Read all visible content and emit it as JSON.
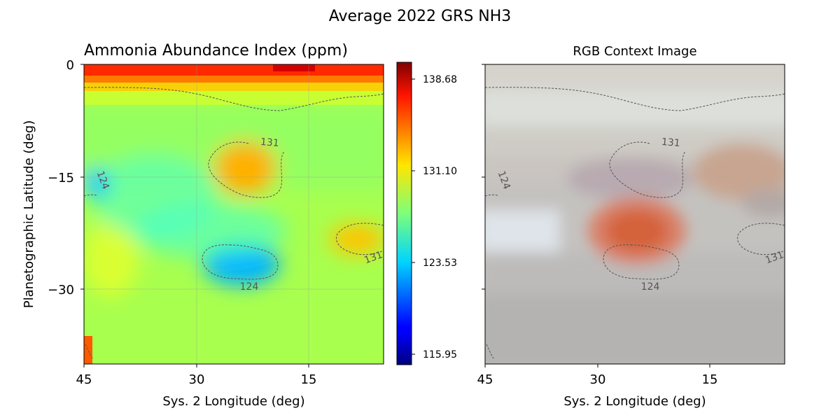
{
  "figure": {
    "suptitle": "Average 2022 GRS NH3"
  },
  "chart_data": [
    {
      "type": "heatmap",
      "title": "Ammonia Abundance Index (ppm)",
      "xlabel": "Sys. 2 Longitude (deg)",
      "ylabel": "Planetographic Latitude (deg)",
      "xlim": [
        45,
        5
      ],
      "ylim": [
        -40,
        0
      ],
      "xticks": [
        "45",
        "30",
        "15"
      ],
      "yticks": [
        "0",
        "−15",
        "−30"
      ],
      "grid": true,
      "colormap": "jet",
      "colorbar": {
        "range": [
          115.2,
          139.3
        ],
        "ticks": [
          "138.68",
          "131.10",
          "123.53",
          "115.95"
        ]
      },
      "background_value": 128.5,
      "features": [
        {
          "kind": "high_band_top",
          "lat": 0,
          "value": 138.7
        },
        {
          "kind": "ammonia_high",
          "lon": 22,
          "lat": -14,
          "value": 133.5
        },
        {
          "kind": "ammonia_high",
          "lon": 7,
          "lat": -23,
          "value": 132.5
        },
        {
          "kind": "ammonia_low",
          "lon": 22,
          "lat": -26,
          "value": 122.0
        },
        {
          "kind": "ammonia_low",
          "lon": 44,
          "lat": -16,
          "value": 124.5
        }
      ],
      "contour_labels": [
        "131",
        "124",
        "124",
        "131"
      ]
    },
    {
      "type": "heatmap",
      "title": "RGB Context Image",
      "xlabel": "Sys. 2 Longitude (deg)",
      "xlim": [
        45,
        5
      ],
      "xticks": [
        "45",
        "30",
        "15"
      ],
      "contour_labels": [
        "131",
        "124",
        "124",
        "131"
      ]
    }
  ]
}
